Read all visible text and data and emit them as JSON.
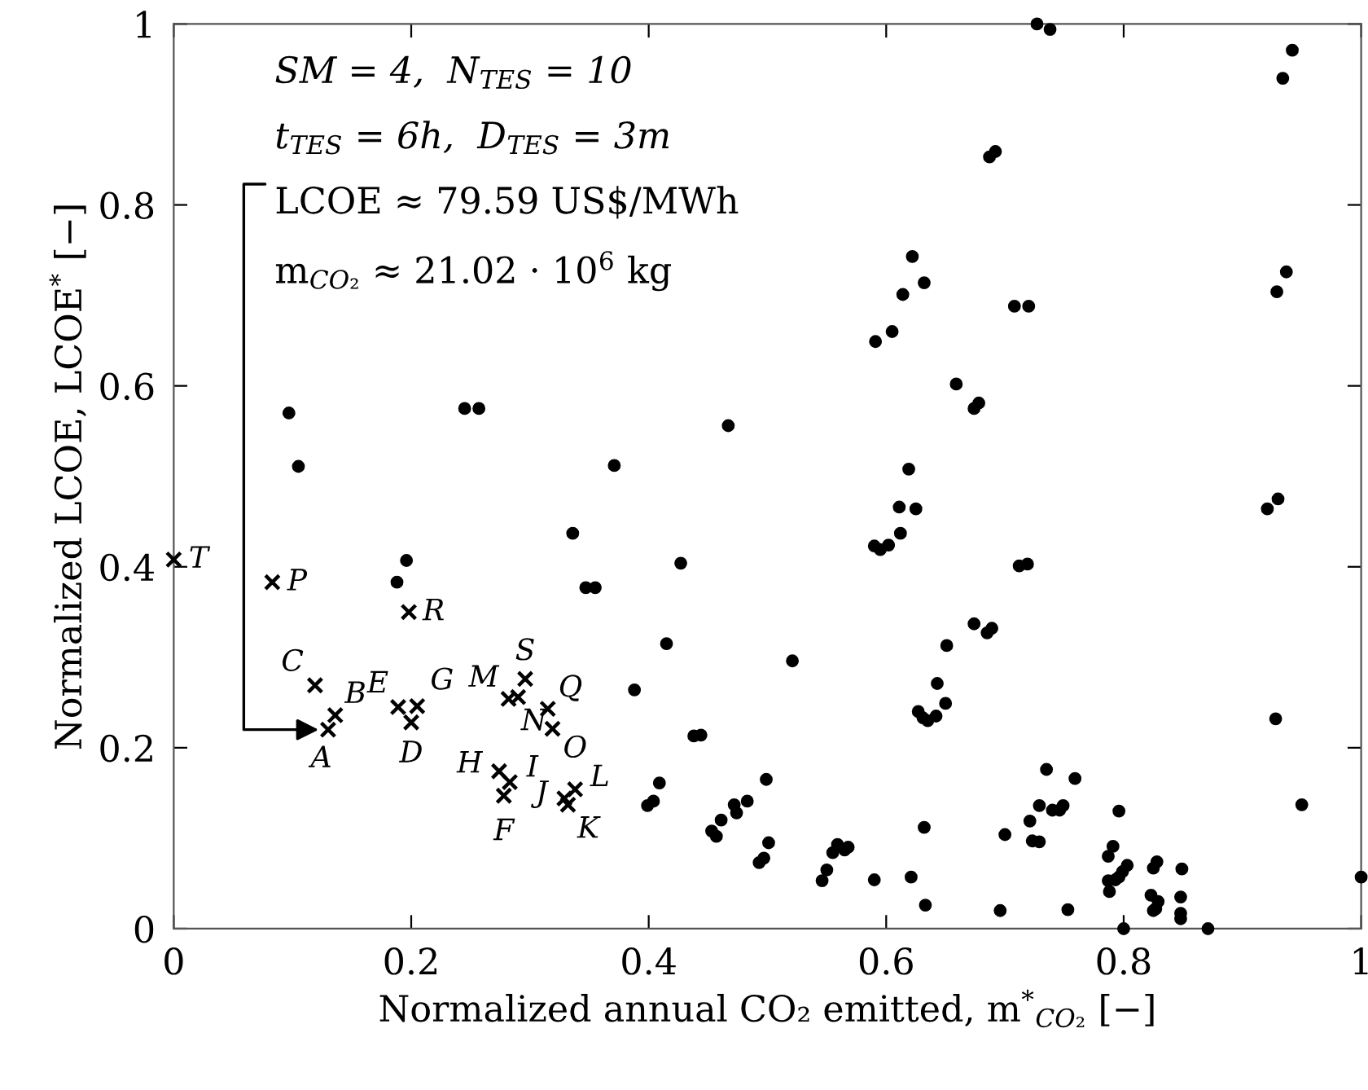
{
  "chart_data": {
    "type": "scatter",
    "xlabel": "Normalized annual CO₂ emitted, m$^{*}$$_{CO₂}$ [−]",
    "ylabel": "Normalized LCOE, LCOE$^{*}$ [−]",
    "xlim": [
      0,
      1
    ],
    "ylim": [
      0,
      1
    ],
    "xticks": [
      0,
      0.2,
      0.4,
      0.6,
      0.8,
      1
    ],
    "yticks": [
      0,
      0.2,
      0.4,
      0.6,
      0.8,
      1
    ],
    "grid": false,
    "legend": false,
    "series": [
      {
        "marker": "circle",
        "color": "#000000",
        "x": [
          0.097,
          0.105,
          0.245,
          0.257,
          0.371,
          0.336,
          0.196,
          0.188,
          0.347,
          0.355,
          0.388,
          0.399,
          0.619,
          0.611,
          0.625,
          0.612,
          0.59,
          0.595,
          0.602,
          0.427,
          0.674,
          0.685,
          0.689,
          0.651,
          0.415,
          0.521,
          0.643,
          0.65,
          0.627,
          0.631,
          0.635,
          0.642,
          0.438,
          0.444,
          0.409,
          0.404,
          0.499,
          0.483,
          0.472,
          0.474,
          0.461,
          0.453,
          0.457,
          0.501,
          0.493,
          0.497,
          0.559,
          0.555,
          0.568,
          0.565,
          0.55,
          0.546,
          0.59,
          0.621,
          0.632,
          0.633,
          0.696,
          0.7,
          0.712,
          0.719,
          0.928,
          0.95,
          1.0,
          0.735,
          0.759,
          0.729,
          0.74,
          0.746,
          0.749,
          0.721,
          0.723,
          0.729,
          0.796,
          0.791,
          0.787,
          0.803,
          0.799,
          0.796,
          0.793,
          0.787,
          0.788,
          0.825,
          0.828,
          0.849,
          0.823,
          0.829,
          0.825,
          0.827,
          0.848,
          0.848,
          0.848,
          0.753,
          0.8,
          0.871,
          0.727,
          0.738,
          0.942,
          0.934,
          0.687,
          0.692,
          0.622,
          0.632,
          0.614,
          0.937,
          0.929,
          0.708,
          0.72,
          0.591,
          0.605,
          0.659,
          0.674,
          0.678,
          0.467,
          0.921,
          0.93
        ],
        "values": [
          0.57,
          0.511,
          0.575,
          0.575,
          0.512,
          0.437,
          0.407,
          0.383,
          0.377,
          0.377,
          0.264,
          0.136,
          0.508,
          0.466,
          0.464,
          0.437,
          0.423,
          0.419,
          0.424,
          0.404,
          0.337,
          0.327,
          0.332,
          0.313,
          0.315,
          0.296,
          0.271,
          0.249,
          0.24,
          0.233,
          0.23,
          0.235,
          0.213,
          0.214,
          0.161,
          0.141,
          0.165,
          0.141,
          0.137,
          0.128,
          0.12,
          0.108,
          0.102,
          0.095,
          0.073,
          0.078,
          0.093,
          0.084,
          0.09,
          0.087,
          0.065,
          0.053,
          0.054,
          0.057,
          0.112,
          0.026,
          0.02,
          0.104,
          0.401,
          0.403,
          0.232,
          0.137,
          0.057,
          0.176,
          0.166,
          0.136,
          0.131,
          0.131,
          0.136,
          0.119,
          0.097,
          0.096,
          0.13,
          0.091,
          0.08,
          0.07,
          0.063,
          0.057,
          0.054,
          0.053,
          0.041,
          0.067,
          0.074,
          0.066,
          0.037,
          0.03,
          0.02,
          0.022,
          0.035,
          0.017,
          0.011,
          0.021,
          0.0,
          0.0,
          1.0,
          0.994,
          0.971,
          0.94,
          0.853,
          0.859,
          0.743,
          0.714,
          0.701,
          0.726,
          0.704,
          0.688,
          0.688,
          0.649,
          0.66,
          0.602,
          0.575,
          0.581,
          0.556,
          0.464,
          0.475
        ]
      },
      {
        "marker": "cross",
        "color": "#000000",
        "x": [
          0.13,
          0.136,
          0.119,
          0.2,
          0.189,
          0.278,
          0.205,
          0.274,
          0.283,
          0.329,
          0.332,
          0.338,
          0.282,
          0.29,
          0.319,
          0.083,
          0.315,
          0.198,
          0.296,
          0.0
        ],
        "values": [
          0.22,
          0.236,
          0.269,
          0.228,
          0.245,
          0.147,
          0.246,
          0.174,
          0.162,
          0.144,
          0.137,
          0.154,
          0.254,
          0.256,
          0.221,
          0.383,
          0.243,
          0.35,
          0.276,
          0.408
        ]
      }
    ],
    "annotations": [
      "SM = 4,  N$_{TES}$ = 10",
      "t$_{TES}$ = 6h,  D$_{TES}$ = 3m",
      "LCOE ≈ 79.59 US$/MWh",
      "m$_{CO₂}$ ≈ 21.02 · 10$^{6}$ kg",
      {
        "text": "A",
        "x": 0.13,
        "y": 0.22
      },
      {
        "text": "B",
        "x": 0.136,
        "y": 0.236
      },
      {
        "text": "C",
        "x": 0.119,
        "y": 0.269
      },
      {
        "text": "D",
        "x": 0.2,
        "y": 0.228
      },
      {
        "text": "E",
        "x": 0.189,
        "y": 0.245
      },
      {
        "text": "F",
        "x": 0.278,
        "y": 0.147
      },
      {
        "text": "G",
        "x": 0.205,
        "y": 0.246
      },
      {
        "text": "H",
        "x": 0.274,
        "y": 0.174
      },
      {
        "text": "I",
        "x": 0.283,
        "y": 0.162
      },
      {
        "text": "J",
        "x": 0.329,
        "y": 0.144
      },
      {
        "text": "K",
        "x": 0.332,
        "y": 0.137
      },
      {
        "text": "L",
        "x": 0.338,
        "y": 0.154
      },
      {
        "text": "M",
        "x": 0.282,
        "y": 0.254
      },
      {
        "text": "N",
        "x": 0.29,
        "y": 0.256
      },
      {
        "text": "O",
        "x": 0.319,
        "y": 0.221
      },
      {
        "text": "P",
        "x": 0.083,
        "y": 0.383
      },
      {
        "text": "Q",
        "x": 0.315,
        "y": 0.243
      },
      {
        "text": "R",
        "x": 0.198,
        "y": 0.35
      },
      {
        "text": "S",
        "x": 0.296,
        "y": 0.276
      },
      {
        "text": "T",
        "x": 0.0,
        "y": 0.408
      }
    ]
  }
}
